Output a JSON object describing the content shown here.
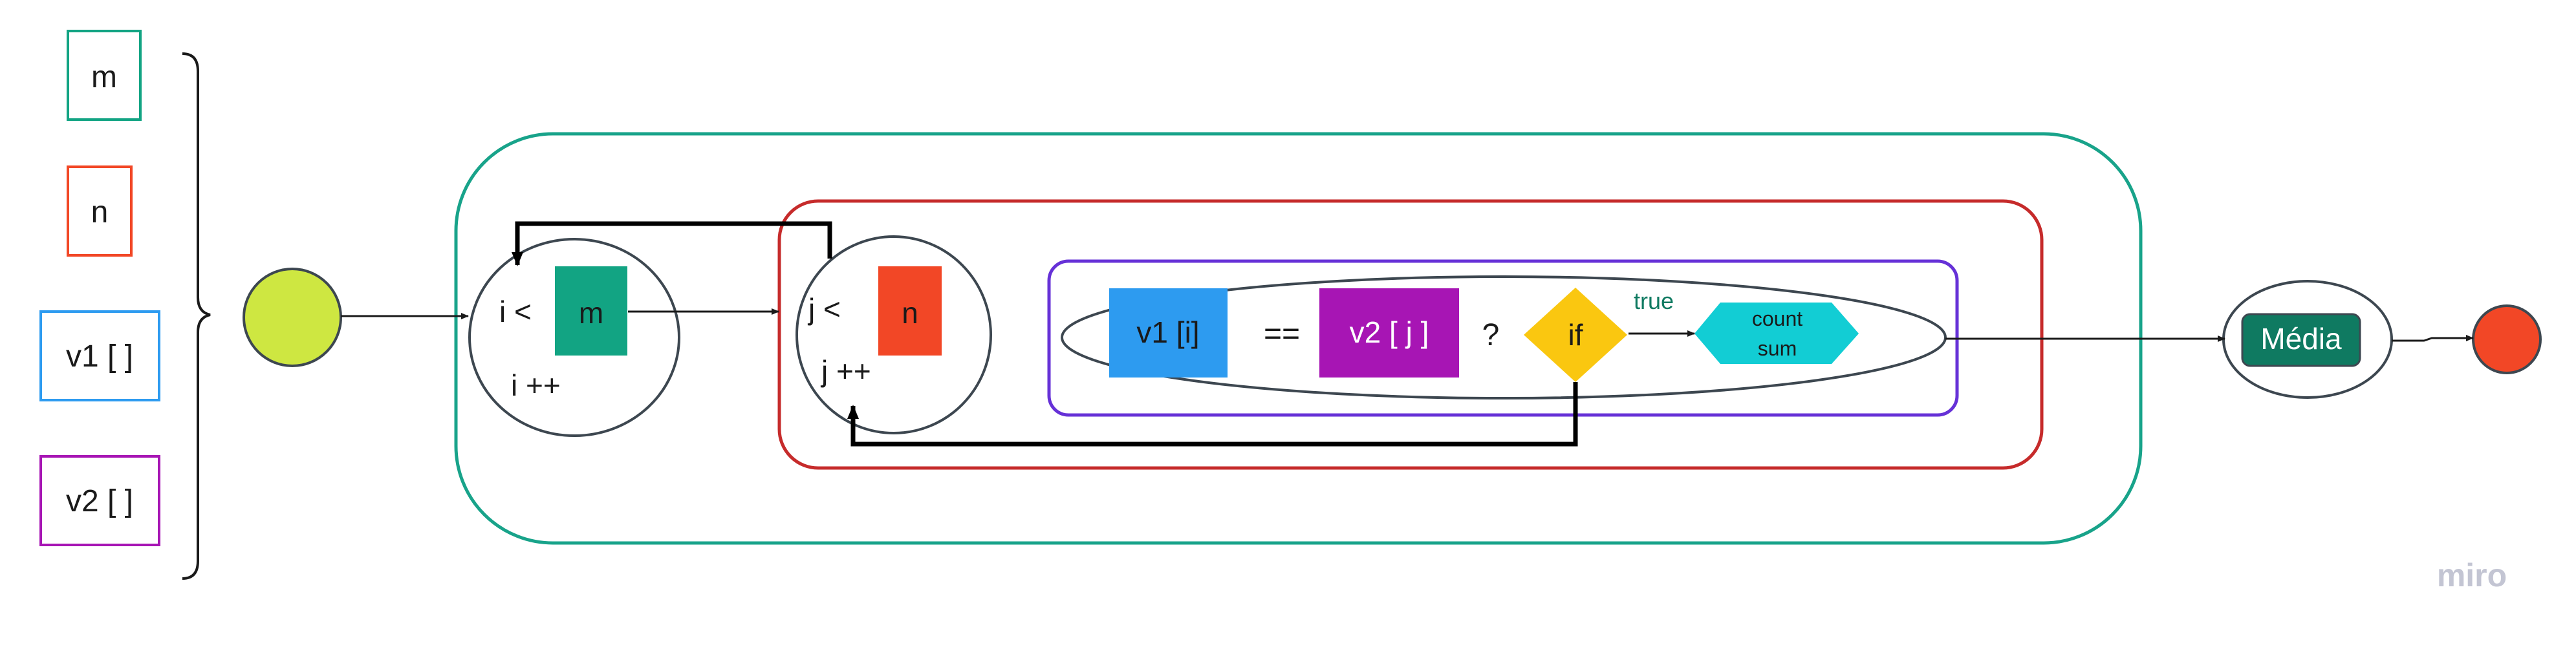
{
  "inputs": {
    "m": "m",
    "n": "n",
    "v1": "v1 [ ]",
    "v2": "v2 [ ]"
  },
  "outer_loop": {
    "cond_prefix": "i <",
    "cond_box": "m",
    "increment": "i ++"
  },
  "inner_loop": {
    "cond_prefix": "j <",
    "cond_box": "n",
    "increment": "j ++"
  },
  "compare": {
    "left": "v1 [i]",
    "operator": "==",
    "right": "v2 [ j ]",
    "question": "?",
    "if_label": "if",
    "true_label": "true",
    "action_line1": "count",
    "action_line2": "sum"
  },
  "result": {
    "label": "Média"
  },
  "watermark": "miro",
  "colors": {
    "green": "#12a483",
    "red": "#f24726",
    "blue": "#2d9bf0",
    "purple": "#a715b4",
    "lime": "#cee741",
    "yellow": "#fac710",
    "cyan": "#12cdd4",
    "dark_green": "#0f7a61",
    "outer_green_frame": "#18a38a",
    "red_frame": "#c62b2b",
    "purple_frame": "#6631d7"
  }
}
